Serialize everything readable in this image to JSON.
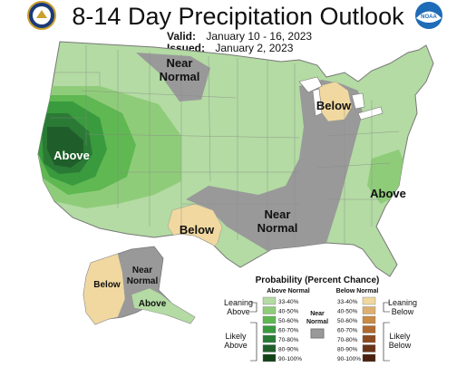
{
  "title": "8-14 Day Precipitation Outlook",
  "valid_label": "Valid:",
  "valid_value": "January 10 - 16, 2023",
  "issued_label": "Issued:",
  "issued_value": "January 2, 2023",
  "logos": {
    "left": "Department of Commerce seal",
    "right": "NOAA logo"
  },
  "logo_text": {
    "noaa": "NOAA"
  },
  "map_labels": {
    "near_normal_north": [
      "Near",
      "Normal"
    ],
    "below_michigan": "Below",
    "above_california": "Above",
    "below_texas": "Below",
    "near_normal_central": [
      "Near",
      "Normal"
    ],
    "above_southeast": "Above",
    "below_alaska": "Below",
    "near_normal_alaska": [
      "Near",
      "Normal"
    ],
    "above_alaska": "Above"
  },
  "legend": {
    "title": "Probability (Percent Chance)",
    "above_header": "Above Normal",
    "below_header": "Below Normal",
    "near_header": [
      "Near",
      "Normal"
    ],
    "above_bins": [
      "33-40%",
      "40-50%",
      "50-60%",
      "60-70%",
      "70-80%",
      "80-90%",
      "90-100%"
    ],
    "below_bins": [
      "33-40%",
      "40-50%",
      "50-60%",
      "60-70%",
      "70-80%",
      "80-90%",
      "90-100%"
    ],
    "leaning_above": [
      "Leaning",
      "Above"
    ],
    "likely_above": [
      "Likely",
      "Above"
    ],
    "leaning_below": [
      "Leaning",
      "Below"
    ],
    "likely_below": [
      "Likely",
      "Below"
    ],
    "above_colors": [
      "#b3dba3",
      "#8fcc7a",
      "#5fb851",
      "#3a9a3e",
      "#2a7a35",
      "#1f5e2a",
      "#134217"
    ],
    "below_colors": [
      "#f0d8a0",
      "#ddb070",
      "#c98b45",
      "#b06a30",
      "#8c4b22",
      "#6a3418",
      "#4a200e"
    ],
    "near_color": "#999999"
  }
}
